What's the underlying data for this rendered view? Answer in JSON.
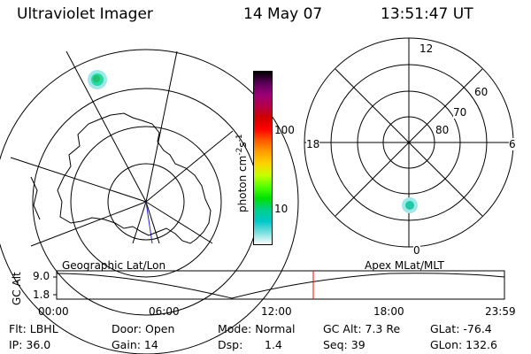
{
  "header": {
    "instrument": "Ultraviolet Imager",
    "date": "14 May 07",
    "time": "13:51:47 UT"
  },
  "colorbar": {
    "label_text": "photon cm",
    "label_sup": "-2",
    "label_s": "s",
    "label_sup2": "-1",
    "ticks": [
      "100",
      "10"
    ],
    "colors": [
      "#000000",
      "#5a005a",
      "#9a0078",
      "#b4004a",
      "#d00000",
      "#ff0000",
      "#ff5a00",
      "#ffa000",
      "#ffd200",
      "#c8ff00",
      "#55ff00",
      "#00e000",
      "#00d088",
      "#00c8c8",
      "#7ae0e0",
      "#ffffff"
    ]
  },
  "polar_plot": {
    "mlt_labels": [
      "12",
      "18",
      "6",
      "0"
    ],
    "lat_labels": [
      "60",
      "70",
      "80"
    ]
  },
  "timeline": {
    "left_title": "Geographic Lat/Lon",
    "right_title": "Apex MLat/MLT",
    "y_axis_label": "GC Alt",
    "y_ticks": [
      "9.0",
      "1.8"
    ],
    "x_ticks": [
      "00:00",
      "06:00",
      "12:00",
      "18:00",
      "23:59"
    ],
    "marker_color": "#ff0000"
  },
  "status": {
    "flt": "Flt: LBHL",
    "ip": "IP: 36.0",
    "door": "Door: Open",
    "gain": "Gain: 14",
    "mode": "Mode: Normal",
    "dsp": "Dsp:",
    "dsp_value": "1.4",
    "gc_alt": "GC Alt: 7.3 Re",
    "seq": "Seq: 39",
    "glat": "GLat: -76.4",
    "glon": "GLon: 132.6"
  }
}
